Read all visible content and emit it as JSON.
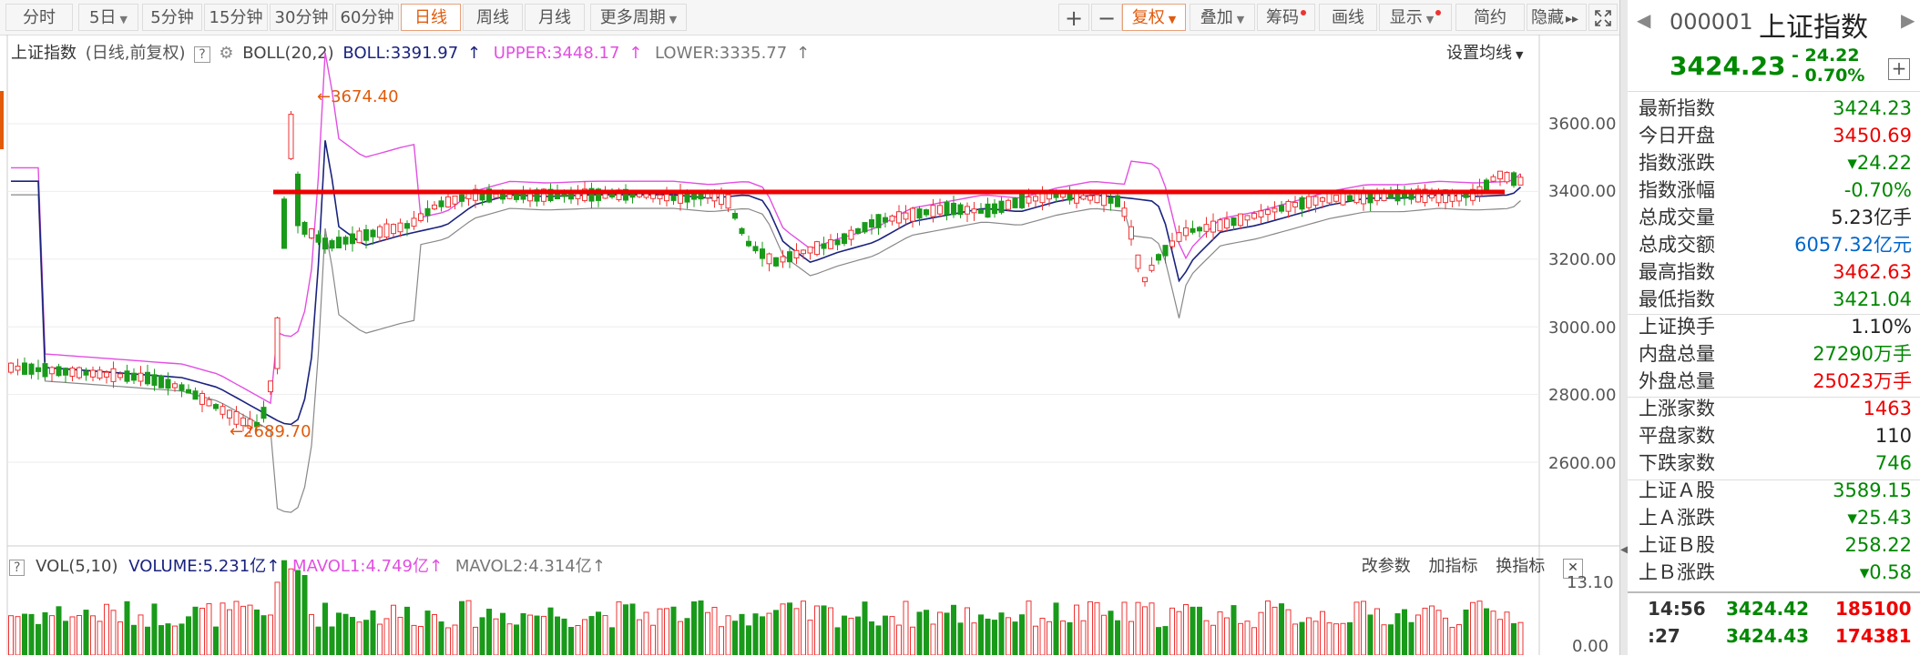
{
  "toolbar": {
    "periods": [
      "分时",
      "5日",
      "5分钟",
      "15分钟",
      "30分钟",
      "60分钟",
      "日线",
      "周线",
      "月线",
      "更多周期"
    ],
    "active_period": "日线",
    "right": [
      "+",
      "−",
      "复权",
      "叠加",
      "筹码",
      "画线",
      "显示",
      "简约",
      "隐藏"
    ]
  },
  "legend": {
    "name": "上证指数",
    "params": "(日线,前复权)",
    "q": "?",
    "gear": "⚙",
    "boll": "BOLL(20,2)",
    "boll_val": "BOLL:3391.97",
    "upper": "UPPER:3448.17",
    "lower": "LOWER:3335.77",
    "arrow": "↑",
    "set_ma": "设置均线"
  },
  "price_axis": [
    "3600.00",
    "3400.00",
    "3200.00",
    "3000.00",
    "2800.00",
    "2600.00"
  ],
  "annotations": {
    "high": "3674.40",
    "low": "2689.70"
  },
  "vol": {
    "q": "?",
    "label": "VOL(5,10)",
    "volume": "VOLUME:5.231亿",
    "mavol1": "MAVOL1:4.749亿",
    "mavol2": "MAVOL2:4.314亿",
    "arrow": "↑",
    "tools": [
      "改参数",
      "加指标",
      "换指标"
    ],
    "close": "✕",
    "axis_top": "13.10",
    "axis_bottom": "0.00"
  },
  "side": {
    "code": "000001",
    "name": "上证指数",
    "price": "3424.23",
    "change": "- 24.22",
    "change_pct": "- 0.70%",
    "plus": "+",
    "rows": [
      {
        "k": "最新指数",
        "v": "3424.23",
        "c": "green"
      },
      {
        "k": "今日开盘",
        "v": "3450.69",
        "c": "red"
      },
      {
        "k": "指数涨跌",
        "v": "▾24.22",
        "c": "green"
      },
      {
        "k": "指数涨幅",
        "v": "-0.70%",
        "c": "green"
      },
      {
        "k": "总成交量",
        "v": "5.23亿手",
        "c": "black"
      },
      {
        "k": "总成交额",
        "v": "6057.32亿元",
        "c": "blue"
      },
      {
        "k": "最高指数",
        "v": "3462.63",
        "c": "red"
      },
      {
        "k": "最低指数",
        "v": "3421.04",
        "c": "green"
      },
      {
        "k": "上证换手",
        "v": "1.10%",
        "c": "black"
      },
      {
        "k": "内盘总量",
        "v": "27290万手",
        "c": "green"
      },
      {
        "k": "外盘总量",
        "v": "25023万手",
        "c": "red"
      },
      {
        "k": "上涨家数",
        "v": "1463",
        "c": "red"
      },
      {
        "k": "平盘家数",
        "v": "110",
        "c": "black"
      },
      {
        "k": "下跌家数",
        "v": "746",
        "c": "green"
      },
      {
        "k": "上证Ａ股",
        "v": "3589.15",
        "c": "green"
      },
      {
        "k": "上Ａ涨跌",
        "v": "▾25.43",
        "c": "green"
      },
      {
        "k": "上证Ｂ股",
        "v": "258.22",
        "c": "green"
      },
      {
        "k": "上Ｂ涨跌",
        "v": "▾0.58",
        "c": "green"
      }
    ],
    "ticks": [
      {
        "t": "14:56",
        "p": "3424.42",
        "v": "185100"
      },
      {
        "t": ":27",
        "p": "3424.43",
        "v": "174381"
      }
    ]
  },
  "colors": {
    "up": "#e33",
    "down": "#1a9a1a",
    "mid": "#1a237e",
    "upper": "#e24fe2",
    "lower": "#888",
    "accent": "#e25a0b",
    "redline": "#e00"
  }
}
